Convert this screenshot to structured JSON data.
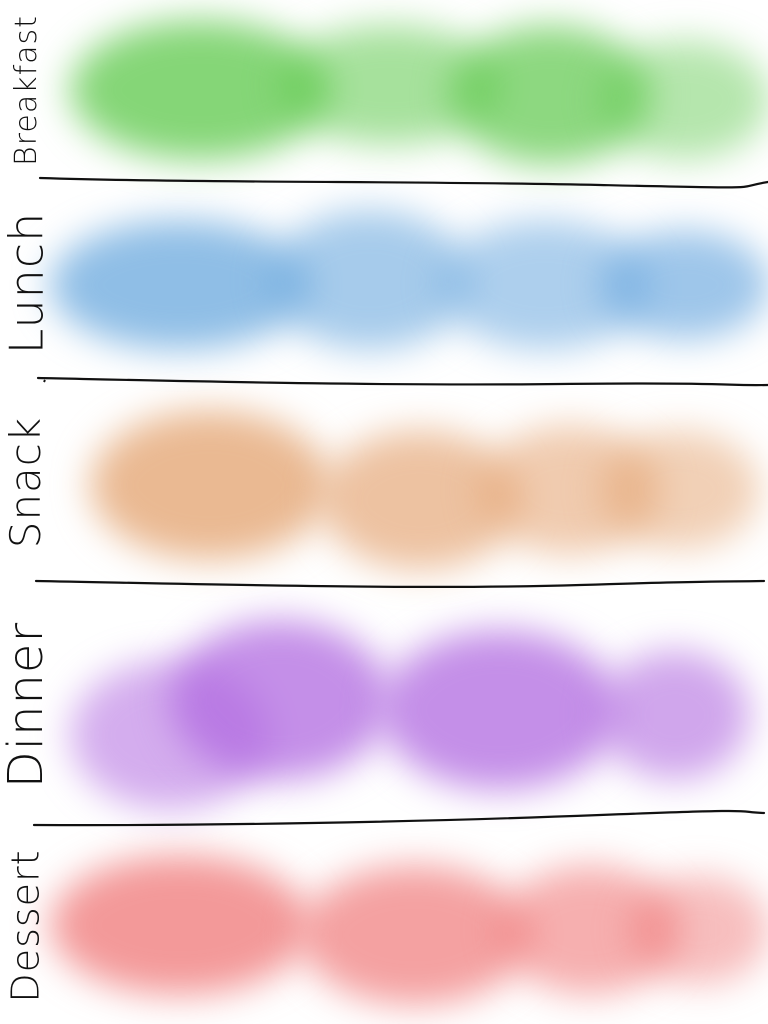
{
  "sections": [
    {
      "label": "Breakfast",
      "color": "#5cc84a"
    },
    {
      "label": "Lunch",
      "color": "#6aa8de"
    },
    {
      "label": "Snack",
      "color": "#e3a16e"
    },
    {
      "label": "Dinner",
      "color": "#b06ae0"
    },
    {
      "label": "Dessert",
      "color": "#ee6e6e"
    }
  ],
  "divider_color": "#111111"
}
